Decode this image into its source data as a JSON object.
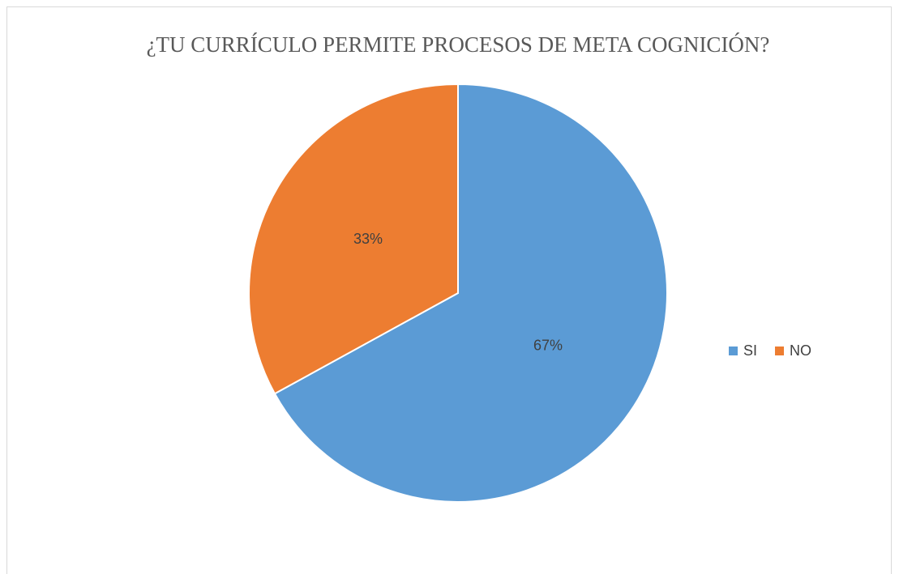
{
  "chart_data": {
    "type": "pie",
    "title": "¿TU CURRÍCULO PERMITE PROCESOS DE META COGNICIÓN?",
    "categories": [
      "SI",
      "NO"
    ],
    "values": [
      67,
      33
    ],
    "value_labels": [
      "67%",
      "33%"
    ],
    "colors": [
      "#5b9bd5",
      "#ed7d31"
    ],
    "legend": "right"
  }
}
